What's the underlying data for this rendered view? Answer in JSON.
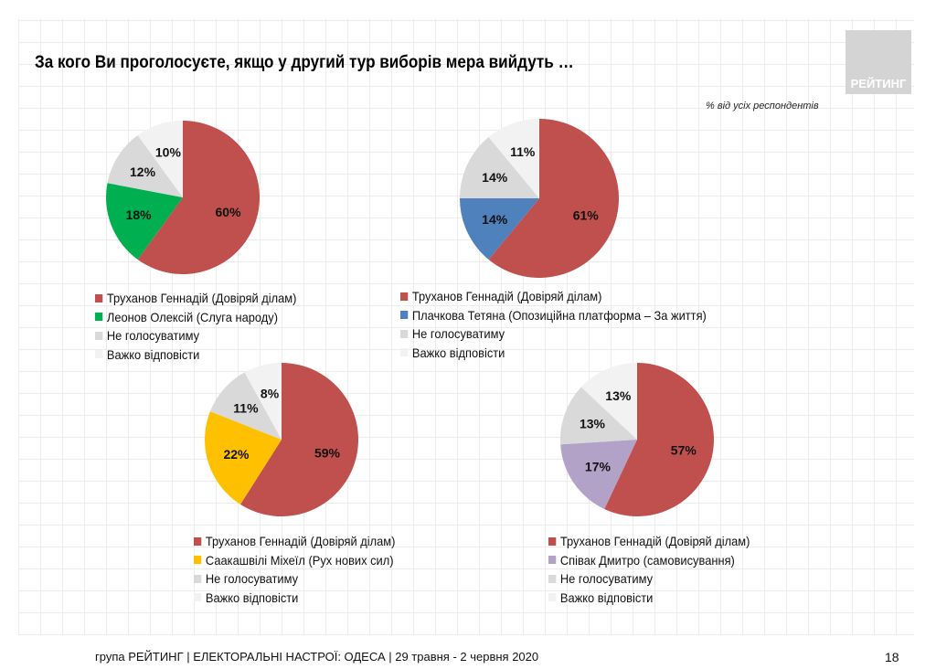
{
  "title": "За кого Ви проголосуєте, якщо у другий тур виборів мера вийдуть …",
  "logo": "РЕЙТИНГ",
  "subtitle": "% від усіх респондентів",
  "footer": "група РЕЙТИНГ  |  ЕЛЕКТОРАЛЬНІ НАСТРОЇ: ОДЕСА | 29 травня - 2 червня 2020",
  "page_number": "18",
  "chart_data": [
    {
      "type": "pie",
      "categories": [
        "Труханов Геннадій (Довіряй ділам)",
        "Леонов Олексій (Слуга народу)",
        "Не голосуватиму",
        "Важко відповісти"
      ],
      "values": [
        60,
        18,
        12,
        10
      ],
      "labels": [
        "60%",
        "18%",
        "12%",
        "10%"
      ],
      "colors": [
        "#c0504d",
        "#00b050",
        "#d9d9d9",
        "#f2f2f2"
      ],
      "legend": "bottom"
    },
    {
      "type": "pie",
      "categories": [
        "Труханов Геннадій (Довіряй ділам)",
        "Плачкова Тетяна (Опозиційна платформа – За життя)",
        "Не голосуватиму",
        "Важко відповісти"
      ],
      "values": [
        61,
        14,
        14,
        11
      ],
      "labels": [
        "61%",
        "14%",
        "14%",
        "11%"
      ],
      "colors": [
        "#c0504d",
        "#4f81bd",
        "#d9d9d9",
        "#f2f2f2"
      ],
      "legend": "bottom"
    },
    {
      "type": "pie",
      "categories": [
        "Труханов Геннадій (Довіряй ділам)",
        "Саакашвілі Міхеїл (Рух нових сил)",
        "Не голосуватиму",
        "Важко відповісти"
      ],
      "values": [
        59,
        22,
        11,
        8
      ],
      "labels": [
        "59%",
        "22%",
        "11%",
        "8%"
      ],
      "colors": [
        "#c0504d",
        "#ffc000",
        "#d9d9d9",
        "#f2f2f2"
      ],
      "legend": "bottom"
    },
    {
      "type": "pie",
      "categories": [
        "Труханов Геннадій (Довіряй ділам)",
        "Співак Дмитро (самовисування)",
        "Не голосуватиму",
        "Важко відповісти"
      ],
      "values": [
        57,
        17,
        13,
        13
      ],
      "labels": [
        "57%",
        "17%",
        "13%",
        "13%"
      ],
      "colors": [
        "#c0504d",
        "#b3a2c7",
        "#d9d9d9",
        "#f2f2f2"
      ],
      "legend": "bottom"
    }
  ]
}
